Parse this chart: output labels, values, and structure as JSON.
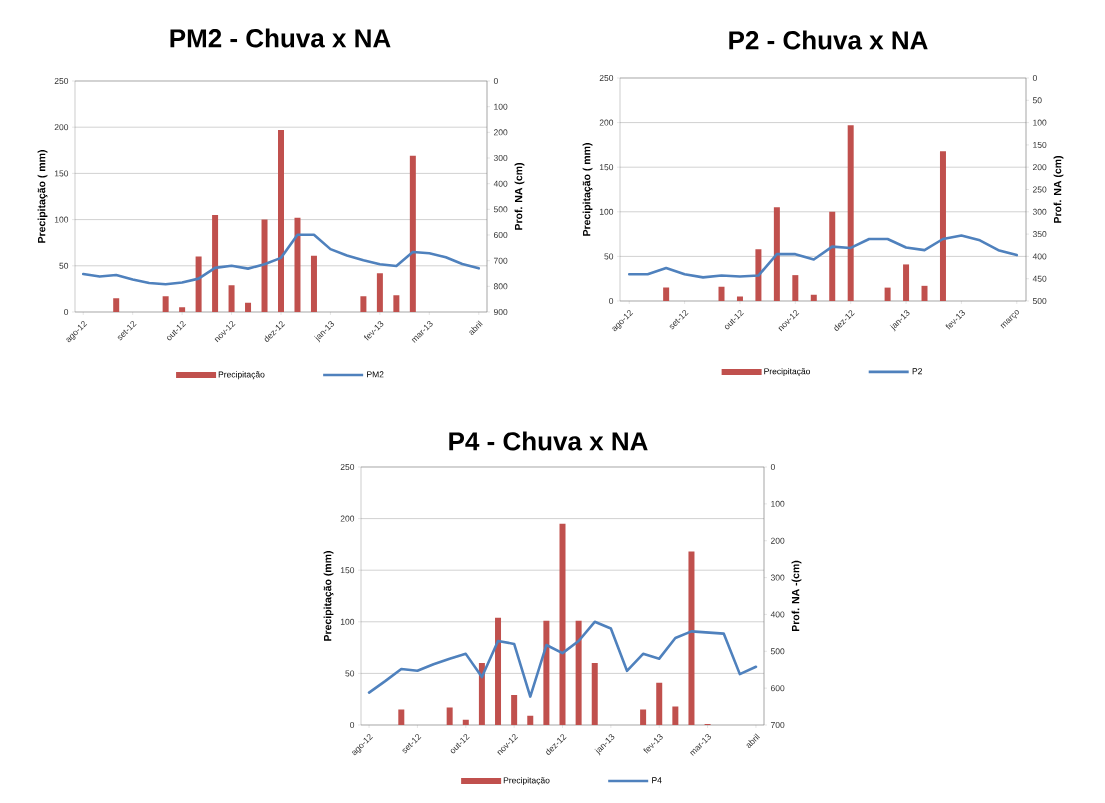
{
  "chart_data": [
    {
      "type": "bar",
      "title": "PM2 - Chuva x NA",
      "ylabel": "Precipitação ( mm)",
      "y2label": "Prof. NA  (cm)",
      "categories": [
        "ago-12",
        null,
        null,
        "set-12",
        null,
        null,
        "out-12",
        null,
        null,
        "nov-12",
        null,
        null,
        "dez-12",
        null,
        null,
        "jan-13",
        null,
        null,
        "fev-13",
        null,
        null,
        "mar-13",
        null,
        null,
        "abril"
      ],
      "series": [
        {
          "name": "Precipitação",
          "color": "#c0504d",
          "values": [
            0,
            0,
            15,
            0,
            0,
            17,
            5,
            60,
            105,
            29,
            10,
            100,
            197,
            102,
            61,
            0,
            0,
            17,
            42,
            18,
            169,
            0,
            0,
            0,
            0
          ]
        },
        {
          "name": "PM2",
          "type": "line",
          "axis": "y2",
          "color": "#4f81bd",
          "values": [
            752,
            762,
            756,
            773,
            787,
            792,
            785,
            770,
            728,
            720,
            731,
            714,
            689,
            599,
            599,
            655,
            680,
            698,
            714,
            721,
            666,
            671,
            687,
            713,
            730
          ]
        }
      ],
      "ylim": [
        0,
        250
      ],
      "yticks": [
        0,
        50,
        100,
        150,
        200,
        250
      ],
      "y2lim": [
        900,
        0
      ],
      "y2ticks": [
        0,
        100,
        200,
        300,
        400,
        500,
        600,
        700,
        800,
        900
      ],
      "grid": "y",
      "legend": "bottom"
    },
    {
      "type": "bar",
      "title": "P2 - Chuva x NA",
      "ylabel": "Precipitação ( mm)",
      "y2label": "Prof. NA  (cm)",
      "categories": [
        "ago-12",
        null,
        null,
        "set-12",
        null,
        null,
        "out-12",
        null,
        null,
        "nov-12",
        null,
        null,
        "dez-12",
        null,
        null,
        "jan-13",
        null,
        null,
        "fev-13",
        null,
        null,
        "março"
      ],
      "series": [
        {
          "name": "Precipitação",
          "color": "#c0504d",
          "values": [
            0,
            0,
            15,
            0,
            0,
            16,
            5,
            58,
            105,
            29,
            7,
            100,
            197,
            0,
            15,
            41,
            17,
            168,
            0,
            0,
            0,
            0
          ]
        },
        {
          "name": "P2",
          "type": "line",
          "axis": "y2",
          "color": "#4f81bd",
          "values": [
            440,
            440,
            426,
            440,
            447,
            443,
            445,
            443,
            395,
            395,
            407,
            378,
            381,
            361,
            361,
            380,
            386,
            361,
            353,
            364,
            386,
            397
          ]
        }
      ],
      "ylim": [
        0,
        250
      ],
      "yticks": [
        0,
        50,
        100,
        150,
        200,
        250
      ],
      "y2lim": [
        500,
        0
      ],
      "y2ticks": [
        0,
        50,
        100,
        150,
        200,
        250,
        300,
        350,
        400,
        450,
        500
      ],
      "grid": "y",
      "legend": "bottom"
    },
    {
      "type": "bar",
      "title": "P4 - Chuva x NA",
      "ylabel": "Precipitação (mm)",
      "y2label": "Prof. NA -(cm)",
      "categories": [
        "ago-12",
        null,
        null,
        "set-12",
        null,
        null,
        "out-12",
        null,
        null,
        "nov-12",
        null,
        null,
        "dez-12",
        null,
        null,
        "jan-13",
        null,
        null,
        "fev-13",
        null,
        null,
        "mar-13",
        null,
        null,
        "abril"
      ],
      "series": [
        {
          "name": "Precipitação",
          "color": "#c0504d",
          "values": [
            0,
            0,
            15,
            0,
            0,
            17,
            5,
            60,
            104,
            29,
            9,
            101,
            195,
            101,
            60,
            0,
            0,
            15,
            41,
            18,
            168,
            1,
            0,
            0,
            0
          ]
        },
        {
          "name": "P4",
          "type": "line",
          "axis": "y2",
          "color": "#4f81bd",
          "values": [
            612,
            581,
            548,
            553,
            535,
            520,
            507,
            570,
            472,
            480,
            623,
            483,
            505,
            472,
            420,
            438,
            553,
            507,
            520,
            464,
            446,
            449,
            452,
            562,
            542
          ]
        }
      ],
      "ylim": [
        0,
        250
      ],
      "yticks": [
        0,
        50,
        100,
        150,
        200,
        250
      ],
      "y2lim": [
        700,
        0
      ],
      "y2ticks": [
        0,
        100,
        200,
        300,
        400,
        500,
        600,
        700
      ],
      "grid": "y",
      "legend": "bottom"
    }
  ]
}
